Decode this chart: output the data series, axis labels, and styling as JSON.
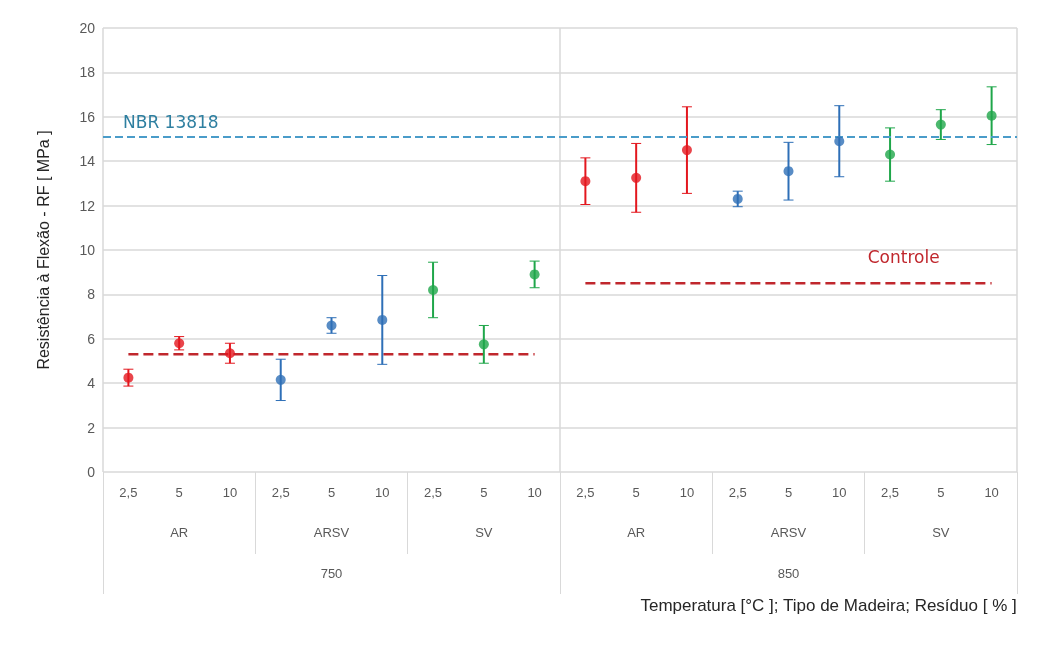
{
  "chart_data": {
    "type": "scatter",
    "ylabel": "Resistência à Flexão - RF [ MPa ]",
    "categories": [
      "2,5",
      "5",
      "10",
      "2,5",
      "5",
      "10",
      "2,5",
      "5",
      "10",
      "2,5",
      "5",
      "10",
      "2,5",
      "5",
      "10",
      "2,5",
      "5",
      "10"
    ],
    "annotations": [
      "AR",
      "ARSV",
      "SV",
      "AR",
      "ARSV",
      "SV",
      "750",
      "850",
      "Temperatura [°C ]; Tipo de Madeira; Resíduo [ % ]"
    ],
    "series": [
      {
        "color": "#e3171e",
        "values": [
          4.25,
          5.8,
          5.35,
          null,
          null,
          null,
          null,
          null,
          null,
          13.1,
          13.25,
          14.5,
          null,
          null,
          null,
          null,
          null,
          null
        ],
        "errors": [
          0.38,
          0.3,
          0.45,
          null,
          null,
          null,
          null,
          null,
          null,
          1.05,
          1.55,
          1.95,
          null,
          null,
          null,
          null,
          null,
          null
        ]
      },
      {
        "color": "#2e6fb7",
        "values": [
          null,
          null,
          null,
          4.15,
          6.6,
          6.85,
          null,
          null,
          null,
          null,
          null,
          null,
          12.3,
          13.55,
          14.9,
          null,
          null,
          null
        ],
        "errors": [
          null,
          null,
          null,
          0.93,
          0.35,
          2.0,
          null,
          null,
          null,
          null,
          null,
          null,
          0.35,
          1.3,
          1.6,
          null,
          null,
          null
        ]
      },
      {
        "color": "#1fa64a",
        "values": [
          null,
          null,
          null,
          null,
          null,
          null,
          8.2,
          5.75,
          8.9,
          null,
          null,
          null,
          null,
          null,
          null,
          14.3,
          15.65,
          16.05
        ],
        "errors": [
          null,
          null,
          null,
          null,
          null,
          null,
          1.25,
          0.85,
          0.6,
          null,
          null,
          null,
          null,
          null,
          null,
          1.2,
          0.67,
          1.3
        ]
      },
      {
        "type": "line",
        "color": "#c0272d",
        "line_style": "dashed",
        "marker": "none",
        "values": [
          5.3,
          5.3,
          5.3,
          5.3,
          5.3,
          5.3,
          5.3,
          5.3,
          5.3,
          null,
          null,
          null,
          null,
          null,
          null,
          null,
          null,
          null
        ]
      },
      {
        "type": "line",
        "name": "Controle",
        "color": "#c0272d",
        "line_style": "dashed",
        "marker": "none",
        "values": [
          null,
          null,
          null,
          null,
          null,
          null,
          null,
          null,
          null,
          8.5,
          8.5,
          8.5,
          8.5,
          8.5,
          8.5,
          8.5,
          8.5,
          8.5
        ]
      }
    ],
    "ref_lines": [
      {
        "axis": "y",
        "value": 15.1,
        "label": "NBR 13818",
        "color": "#4a9cc9",
        "line_style": "dashed"
      }
    ],
    "ylim": [
      0,
      20
    ],
    "yticks": [
      0,
      2,
      4,
      6,
      8,
      10,
      12,
      14,
      16,
      18,
      20
    ],
    "grid": "y",
    "marker": "circle"
  }
}
